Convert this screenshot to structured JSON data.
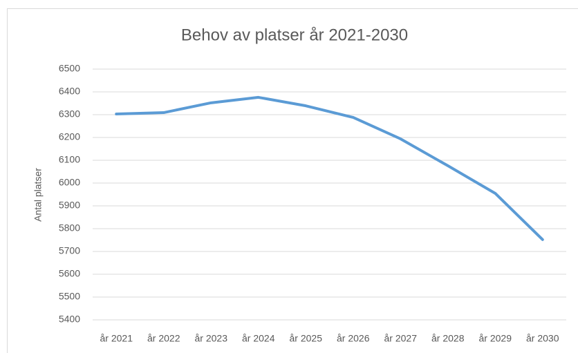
{
  "chart_data": {
    "type": "line",
    "title": "Behov av platser år 2021-2030",
    "y_label": "Antal platser",
    "categories": [
      "år 2021",
      "år 2022",
      "år 2023",
      "år 2024",
      "år 2025",
      "år 2026",
      "år 2027",
      "år 2028",
      "år 2029",
      "år 2030"
    ],
    "series": [
      {
        "name": "Antal platser",
        "color": "#5b9bd5",
        "values": [
          6303,
          6309,
          6352,
          6376,
          6339,
          6288,
          6194,
          6076,
          5955,
          5752
        ]
      }
    ],
    "ylim": [
      5400,
      6500
    ],
    "yticks": [
      5400,
      5500,
      5600,
      5700,
      5800,
      5900,
      6000,
      6100,
      6200,
      6300,
      6400,
      6500
    ],
    "grid": true
  }
}
